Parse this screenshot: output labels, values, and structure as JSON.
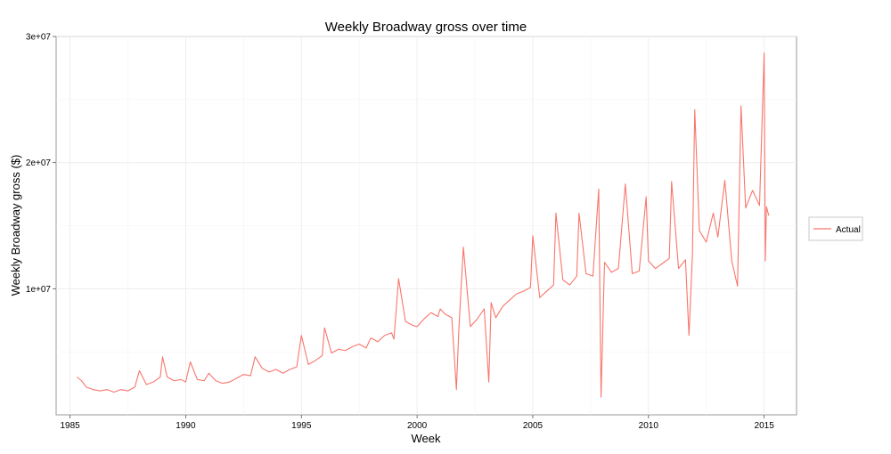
{
  "chart_data": {
    "type": "line",
    "title": "Weekly Broadway gross over time",
    "xlabel": "Week",
    "ylabel": "Weekly Broadway gross ($)",
    "xlim": [
      1984.4,
      2016.4
    ],
    "ylim": [
      0,
      30000000
    ],
    "x_ticks": [
      {
        "value": 1985,
        "label": "1985"
      },
      {
        "value": 1990,
        "label": "1990"
      },
      {
        "value": 1995,
        "label": "1995"
      },
      {
        "value": 2000,
        "label": "2000"
      },
      {
        "value": 2005,
        "label": "2005"
      },
      {
        "value": 2010,
        "label": "2010"
      },
      {
        "value": 2015,
        "label": "2015"
      }
    ],
    "y_ticks": [
      {
        "value": 10000000,
        "label": "1e+07"
      },
      {
        "value": 20000000,
        "label": "2e+07"
      },
      {
        "value": 30000000,
        "label": "3e+07"
      }
    ],
    "grid": true,
    "legend": {
      "position": "right",
      "entries": [
        {
          "label": "Actual",
          "color": "#f8766d"
        }
      ]
    },
    "series": [
      {
        "name": "Actual",
        "color": "#f8766d",
        "x": [
          1985.3,
          1985.5,
          1985.7,
          1986.0,
          1986.3,
          1986.6,
          1986.9,
          1987.2,
          1987.5,
          1987.8,
          1988.0,
          1988.3,
          1988.6,
          1988.9,
          1989.0,
          1989.2,
          1989.5,
          1989.8,
          1990.0,
          1990.2,
          1990.5,
          1990.8,
          1991.0,
          1991.3,
          1991.6,
          1991.9,
          1992.2,
          1992.5,
          1992.8,
          1993.0,
          1993.3,
          1993.6,
          1993.9,
          1994.2,
          1994.5,
          1994.8,
          1995.0,
          1995.3,
          1995.6,
          1995.9,
          1996.0,
          1996.3,
          1996.6,
          1996.9,
          1997.2,
          1997.5,
          1997.8,
          1998.0,
          1998.3,
          1998.6,
          1998.9,
          1999.0,
          1999.2,
          1999.5,
          1999.8,
          2000.0,
          2000.3,
          2000.6,
          2000.9,
          2001.0,
          2001.2,
          2001.5,
          2001.7,
          2001.8,
          2002.0,
          2002.3,
          2002.6,
          2002.9,
          2003.1,
          2003.2,
          2003.4,
          2003.7,
          2004.0,
          2004.3,
          2004.6,
          2004.9,
          2005.0,
          2005.3,
          2005.6,
          2005.9,
          2006.0,
          2006.3,
          2006.6,
          2006.9,
          2007.0,
          2007.3,
          2007.6,
          2007.85,
          2007.95,
          2008.1,
          2008.4,
          2008.7,
          2009.0,
          2009.3,
          2009.6,
          2009.9,
          2010.0,
          2010.3,
          2010.6,
          2010.9,
          2011.0,
          2011.3,
          2011.6,
          2011.75,
          2011.9,
          2012.0,
          2012.2,
          2012.5,
          2012.8,
          2013.0,
          2013.3,
          2013.6,
          2013.85,
          2014.0,
          2014.2,
          2014.5,
          2014.8,
          2015.0,
          2015.05,
          2015.1,
          2015.2
        ],
        "values": [
          3000000,
          2700000,
          2200000,
          2000000,
          1900000,
          2000000,
          1800000,
          2000000,
          1900000,
          2200000,
          3500000,
          2400000,
          2600000,
          3000000,
          4600000,
          3000000,
          2700000,
          2800000,
          2600000,
          4200000,
          2800000,
          2700000,
          3300000,
          2700000,
          2500000,
          2600000,
          2900000,
          3200000,
          3100000,
          4600000,
          3700000,
          3400000,
          3600000,
          3300000,
          3600000,
          3800000,
          6300000,
          4000000,
          4300000,
          4700000,
          6900000,
          4900000,
          5200000,
          5100000,
          5400000,
          5600000,
          5300000,
          6100000,
          5800000,
          6300000,
          6500000,
          6000000,
          10800000,
          7400000,
          7100000,
          7000000,
          7600000,
          8100000,
          7800000,
          8400000,
          8000000,
          7700000,
          2000000,
          6600000,
          13300000,
          7000000,
          7600000,
          8400000,
          2600000,
          8900000,
          7700000,
          8600000,
          9100000,
          9600000,
          9800000,
          10100000,
          14200000,
          9300000,
          9800000,
          10300000,
          16000000,
          10700000,
          10300000,
          11000000,
          16000000,
          11200000,
          11000000,
          17900000,
          1400000,
          12100000,
          11300000,
          11600000,
          18300000,
          11200000,
          11400000,
          17300000,
          12200000,
          11600000,
          12000000,
          12400000,
          18500000,
          11600000,
          12300000,
          6300000,
          12700000,
          24200000,
          14600000,
          13700000,
          16000000,
          14100000,
          18600000,
          12200000,
          10200000,
          24500000,
          16400000,
          17800000,
          16600000,
          28700000,
          12200000,
          16500000,
          15800000
        ]
      }
    ]
  }
}
